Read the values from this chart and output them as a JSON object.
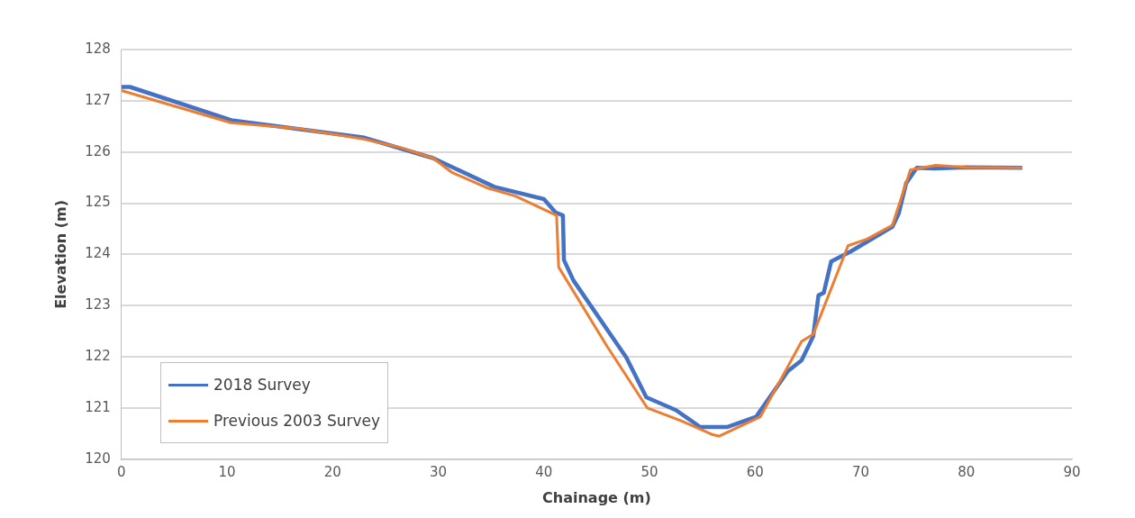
{
  "chart_data": {
    "type": "line",
    "xlabel": "Chainage (m)",
    "ylabel": "Elevation (m)",
    "xlim": [
      0,
      90
    ],
    "xticks": [
      0,
      10,
      20,
      30,
      40,
      50,
      60,
      70,
      80,
      90
    ],
    "ylim": [
      120,
      128
    ],
    "yticks": [
      120,
      121,
      122,
      123,
      124,
      125,
      126,
      127,
      128
    ],
    "grid": "y",
    "legend": "bottom left",
    "line_style": "solid",
    "marker": "none",
    "series": [
      {
        "name": "2018 Survey",
        "color": "#4472c4",
        "x": [
          0,
          0.8,
          10.4,
          23,
          29.5,
          35.3,
          40,
          41.1,
          41.8,
          41.9,
          42.8,
          47.8,
          49.7,
          52.5,
          54.8,
          57.4,
          60.1,
          63.1,
          64.4,
          65.5,
          66.0,
          66.5,
          67.2,
          69,
          73,
          73.6,
          74.3,
          75.3,
          77,
          80,
          85.3
        ],
        "values": [
          127.27,
          127.27,
          126.62,
          126.28,
          125.88,
          125.32,
          125.08,
          124.82,
          124.76,
          123.89,
          123.49,
          121.99,
          121.21,
          120.96,
          120.63,
          120.63,
          120.83,
          121.72,
          121.93,
          122.4,
          123.2,
          123.25,
          123.86,
          124.05,
          124.54,
          124.8,
          125.39,
          125.69,
          125.68,
          125.7,
          125.69
        ]
      },
      {
        "name": "Previous 2003 Survey",
        "color": "#ed7d31",
        "x": [
          0,
          10.4,
          17,
          23,
          26.5,
          29.5,
          31.3,
          34.6,
          37.3,
          41.2,
          41.4,
          46,
          49.8,
          53,
          56,
          56.6,
          60.5,
          64.4,
          65.5,
          68.8,
          70.6,
          73,
          74.7,
          77.1,
          80,
          85.3
        ],
        "values": [
          127.2,
          126.57,
          126.45,
          126.25,
          126.08,
          125.88,
          125.6,
          125.3,
          125.14,
          124.76,
          123.75,
          122.2,
          121.0,
          120.75,
          120.48,
          120.45,
          120.83,
          122.3,
          122.44,
          124.17,
          124.3,
          124.57,
          125.65,
          125.74,
          125.7,
          125.69
        ]
      }
    ]
  }
}
